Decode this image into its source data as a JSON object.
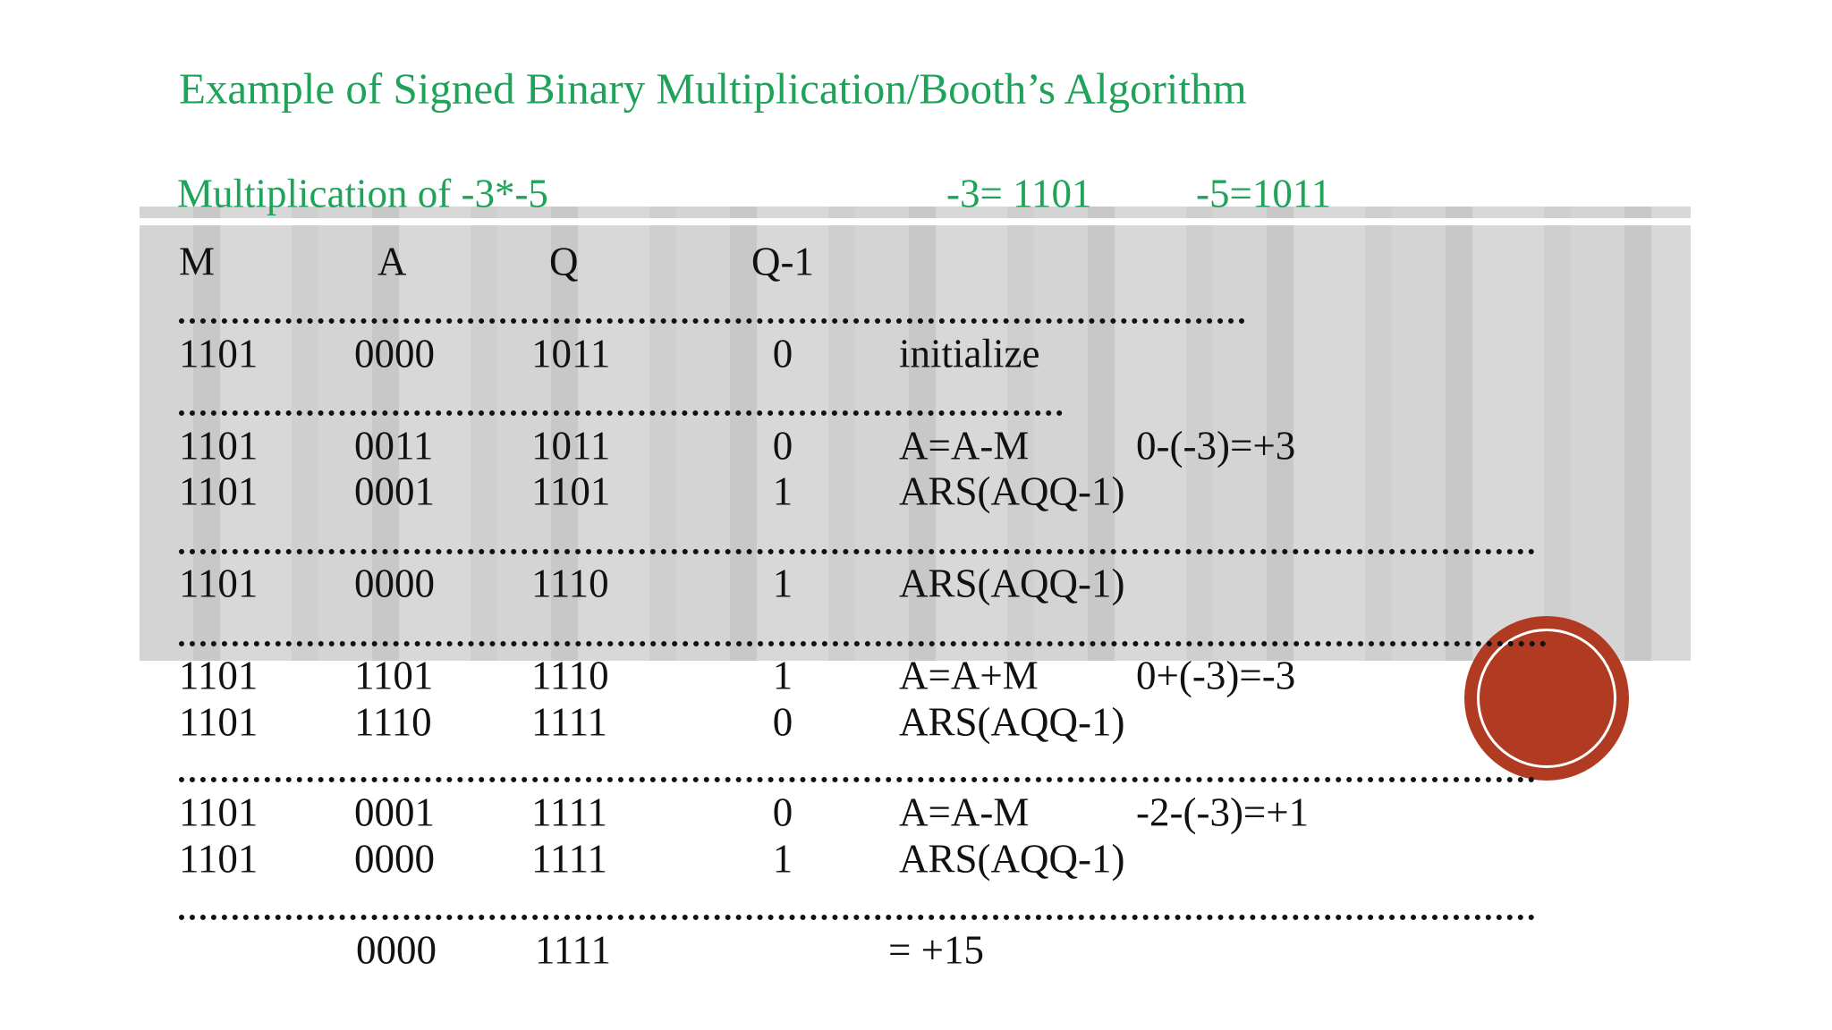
{
  "title": "Example of Signed Binary Multiplication/Booth’s Algorithm",
  "subtitle": {
    "label": "Multiplication of -3*-5",
    "m": "-3= 1101",
    "q": "-5=1011"
  },
  "headers": [
    "M",
    "A",
    "Q",
    "Q-1"
  ],
  "groups": [
    [
      {
        "m": "1101",
        "a": "0000",
        "q": "1011",
        "q1": "0",
        "op": "initialize"
      }
    ],
    [
      {
        "m": "1101",
        "a": "0011",
        "q": "1011",
        "q1": "0",
        "op": "A=A-M",
        "note": "0-(-3)=+3"
      },
      {
        "m": "1101",
        "a": "0001",
        "q": "1101",
        "q1": "1",
        "op": "ARS(AQQ-1)"
      }
    ],
    [
      {
        "m": "1101",
        "a": "0000",
        "q": "1110",
        "q1": "1",
        "op": "ARS(AQQ-1)"
      }
    ],
    [
      {
        "m": "1101",
        "a": "1101",
        "q": "1110",
        "q1": "1",
        "op": "A=A+M",
        "note": "0+(-3)=-3"
      },
      {
        "m": "1101",
        "a": "1110",
        "q": "1111",
        "q1": "0",
        "op": "ARS(AQQ-1)"
      }
    ],
    [
      {
        "m": "1101",
        "a": "0001",
        "q": "1111",
        "q1": "0",
        "op": "A=A-M",
        "note": "-2-(-3)=+1"
      },
      {
        "m": "1101",
        "a": "0000",
        "q": "1111",
        "q1": "1",
        "op": "ARS(AQQ-1)"
      }
    ]
  ],
  "result": {
    "a": "0000",
    "q": "1111",
    "op": "= +15"
  }
}
